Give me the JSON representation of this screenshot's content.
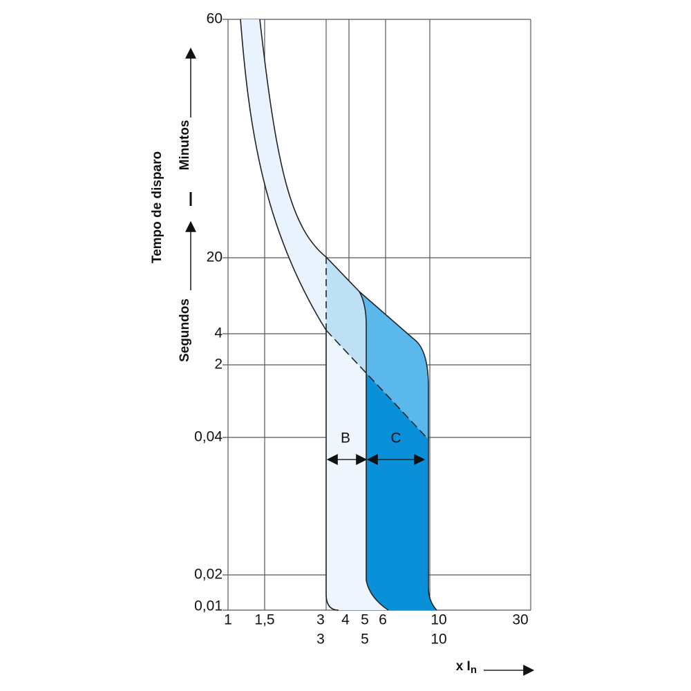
{
  "title": "Tempo de disparo",
  "minutes_label": "Minutos",
  "seconds_label": "Segundos",
  "y_axis": {
    "labels": [
      "60",
      "20",
      "4",
      "2",
      "0,04",
      "0,02",
      "0,01"
    ]
  },
  "x_axis": {
    "labels": [
      "1",
      "1,5",
      "3",
      "4",
      "5",
      "6",
      "10",
      "30"
    ],
    "labels_row2": [
      "3",
      "5",
      "10"
    ],
    "title": "x I",
    "title_subscript": "n"
  },
  "curves": {
    "b": "B",
    "c": "C"
  }
}
